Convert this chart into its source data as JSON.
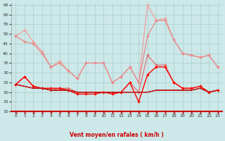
{
  "x": [
    0,
    1,
    2,
    3,
    4,
    5,
    6,
    7,
    8,
    9,
    10,
    11,
    12,
    13,
    14,
    15,
    16,
    17,
    18,
    19,
    20,
    21,
    22,
    23
  ],
  "line1_rafales_top": [
    49,
    52,
    46,
    41,
    33,
    36,
    31,
    27,
    35,
    35,
    35,
    25,
    28,
    33,
    25,
    65,
    57,
    58,
    47,
    40,
    39,
    38,
    39,
    33
  ],
  "line2_rafales_mid": [
    49,
    46,
    45,
    40,
    33,
    35,
    31,
    27,
    35,
    35,
    35,
    25,
    28,
    33,
    25,
    49,
    57,
    57,
    47,
    40,
    39,
    38,
    39,
    33
  ],
  "line3_moyen_wiggly": [
    24,
    28,
    23,
    22,
    21,
    22,
    22,
    20,
    20,
    20,
    20,
    20,
    20,
    25,
    20,
    39,
    34,
    34,
    25,
    22,
    22,
    23,
    20,
    21
  ],
  "line4_moyen_flat_a": [
    24,
    23,
    22,
    22,
    21,
    21,
    21,
    20,
    20,
    20,
    20,
    20,
    20,
    20,
    20,
    20,
    21,
    21,
    21,
    21,
    21,
    22,
    20,
    21
  ],
  "line5_moyen_flat_b": [
    24,
    23,
    22,
    22,
    21,
    21,
    21,
    20,
    20,
    20,
    20,
    20,
    20,
    20,
    20,
    20,
    21,
    21,
    21,
    21,
    21,
    22,
    20,
    21
  ],
  "line6_moyen_flat_c": [
    24,
    23,
    22,
    22,
    21,
    21,
    21,
    20,
    20,
    20,
    20,
    20,
    20,
    20,
    20,
    20,
    21,
    21,
    21,
    21,
    21,
    22,
    20,
    21
  ],
  "line7_moyen_wiggly2": [
    24,
    28,
    23,
    22,
    22,
    22,
    21,
    19,
    19,
    19,
    20,
    19,
    20,
    25,
    15,
    29,
    33,
    33,
    25,
    22,
    22,
    23,
    20,
    21
  ],
  "c_light_pink": "#f0a0a0",
  "c_pink": "#e88888",
  "c_salmon": "#e07070",
  "c_bright_red": "#ff0000",
  "c_red": "#dd0000",
  "c_dark_red": "#880000",
  "c_bg": "#cce8e8",
  "c_grid": "#aacccc",
  "c_axis_red": "#cc0000",
  "xlabel": "Vent moyen/en rafales ( km/h )",
  "ylim": [
    10,
    66
  ],
  "yticks": [
    10,
    15,
    20,
    25,
    30,
    35,
    40,
    45,
    50,
    55,
    60,
    65
  ],
  "xticks": [
    0,
    1,
    2,
    3,
    4,
    5,
    6,
    7,
    8,
    9,
    10,
    11,
    12,
    13,
    14,
    15,
    16,
    17,
    18,
    19,
    20,
    21,
    22,
    23
  ]
}
